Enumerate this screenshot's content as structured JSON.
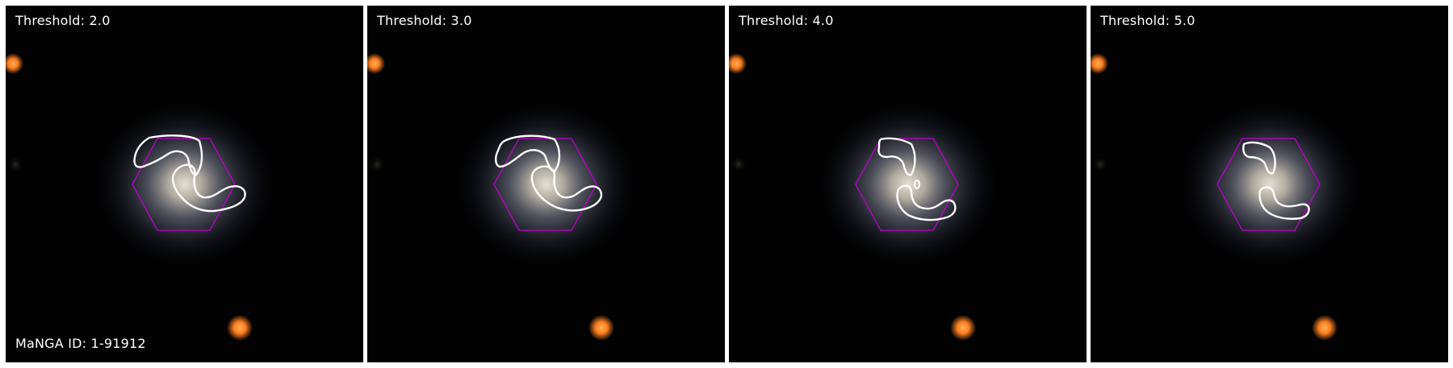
{
  "figure": {
    "manga_id_label": "MaNGA ID: 1-91912",
    "panels": [
      {
        "threshold_label": "Threshold: 2.0"
      },
      {
        "threshold_label": "Threshold: 3.0"
      },
      {
        "threshold_label": "Threshold: 4.0"
      },
      {
        "threshold_label": "Threshold: 5.0"
      }
    ]
  },
  "colors": {
    "background": "#000000",
    "galaxy_core": "#d8d2c4",
    "galaxy_halo": "#4a4f60",
    "star": "#ff8a2a",
    "ifu_hexagon": "#c000d0",
    "contour": "#ffffff"
  }
}
